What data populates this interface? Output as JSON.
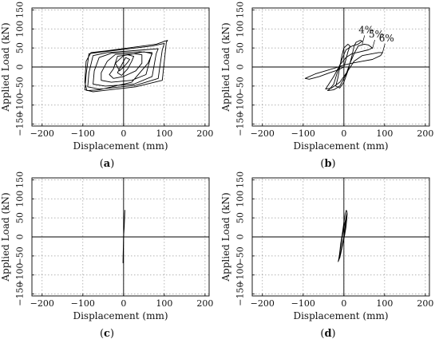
{
  "chart_data": [
    {
      "type": "line",
      "panel_label": "a",
      "xlabel": "Displacement (mm)",
      "ylabel": "Applied Load (kN)",
      "xlim": [
        -225,
        210
      ],
      "ylim": [
        -155,
        155
      ],
      "xticks": [
        -200,
        -100,
        0,
        100,
        200
      ],
      "xtick_labels": [
        "−200",
        "−100",
        "0",
        "100",
        "200"
      ],
      "yticks": [
        -150,
        -100,
        -50,
        0,
        50,
        100,
        150
      ],
      "ytick_labels": [
        "−150",
        "−100",
        "−50",
        "0",
        "50",
        "100",
        "150"
      ],
      "grid": true,
      "annotations": [],
      "series": [
        {
          "points": [
            [
              0,
              0
            ],
            [
              10,
              12
            ],
            [
              15,
              20
            ],
            [
              5,
              25
            ],
            [
              -10,
              -5
            ],
            [
              -15,
              -15
            ],
            [
              -5,
              -22
            ],
            [
              10,
              -5
            ],
            [
              20,
              15
            ],
            [
              25,
              28
            ],
            [
              10,
              32
            ],
            [
              -15,
              28
            ],
            [
              -25,
              -5
            ],
            [
              -35,
              -20
            ],
            [
              -25,
              -30
            ],
            [
              0,
              -25
            ],
            [
              30,
              -10
            ],
            [
              45,
              10
            ],
            [
              45,
              32
            ],
            [
              25,
              35
            ],
            [
              -20,
              33
            ],
            [
              -40,
              15
            ],
            [
              -55,
              -15
            ],
            [
              -55,
              -35
            ],
            [
              -30,
              -40
            ],
            [
              20,
              -35
            ],
            [
              55,
              -20
            ],
            [
              65,
              20
            ],
            [
              70,
              38
            ],
            [
              40,
              40
            ],
            [
              -30,
              36
            ],
            [
              -60,
              25
            ],
            [
              -72,
              -10
            ],
            [
              -75,
              -45
            ],
            [
              -45,
              -50
            ],
            [
              25,
              -45
            ],
            [
              70,
              -25
            ],
            [
              80,
              35
            ],
            [
              85,
              48
            ],
            [
              50,
              45
            ],
            [
              -40,
              38
            ],
            [
              -75,
              30
            ],
            [
              -85,
              -15
            ],
            [
              -88,
              -52
            ],
            [
              -60,
              -58
            ],
            [
              30,
              -48
            ],
            [
              85,
              -30
            ],
            [
              95,
              45
            ],
            [
              100,
              62
            ],
            [
              70,
              55
            ],
            [
              -50,
              40
            ],
            [
              -85,
              35
            ],
            [
              -92,
              -20
            ],
            [
              -95,
              -60
            ],
            [
              -75,
              -65
            ],
            [
              30,
              -52
            ],
            [
              95,
              -35
            ],
            [
              105,
              65
            ],
            [
              108,
              70
            ],
            [
              80,
              60
            ],
            [
              -45,
              42
            ],
            [
              -80,
              38
            ],
            [
              -92,
              15
            ],
            [
              -95,
              -40
            ],
            [
              -90,
              -62
            ],
            [
              -60,
              -60
            ],
            [
              20,
              -40
            ],
            [
              40,
              -15
            ],
            [
              60,
              10
            ],
            [
              70,
              35
            ],
            [
              50,
              40
            ],
            [
              0,
              30
            ],
            [
              -20,
              10
            ],
            [
              -10,
              -10
            ],
            [
              0,
              0
            ]
          ]
        }
      ]
    },
    {
      "type": "line",
      "panel_label": "b",
      "xlabel": "Displacement (mm)",
      "ylabel": "Applied Load (kN)",
      "xlim": [
        -225,
        210
      ],
      "ylim": [
        -155,
        155
      ],
      "xticks": [
        -200,
        -100,
        0,
        100,
        200
      ],
      "xtick_labels": [
        "−200",
        "−100",
        "0",
        "100",
        "200"
      ],
      "yticks": [
        -150,
        -100,
        -50,
        0,
        50,
        100,
        150
      ],
      "ytick_labels": [
        "−150",
        "−100",
        "−50",
        "0",
        "50",
        "100",
        "150"
      ],
      "grid": true,
      "annotations": [
        {
          "text": "4%",
          "at": [
            45,
            60
          ]
        },
        {
          "text": "5%",
          "at": [
            70,
            48
          ]
        },
        {
          "text": "6%",
          "at": [
            95,
            38
          ]
        }
      ],
      "series": [
        {
          "points": [
            [
              0,
              0
            ],
            [
              5,
              20
            ],
            [
              10,
              40
            ],
            [
              15,
              55
            ],
            [
              10,
              60
            ],
            [
              0,
              50
            ],
            [
              -5,
              30
            ],
            [
              -10,
              0
            ],
            [
              -15,
              -30
            ],
            [
              -20,
              -50
            ],
            [
              -10,
              -55
            ],
            [
              0,
              -40
            ],
            [
              10,
              -10
            ],
            [
              20,
              30
            ],
            [
              25,
              55
            ],
            [
              30,
              65
            ],
            [
              40,
              70
            ],
            [
              45,
              68
            ],
            [
              35,
              60
            ],
            [
              20,
              55
            ],
            [
              5,
              45
            ],
            [
              -5,
              20
            ],
            [
              -15,
              -10
            ],
            [
              -25,
              -45
            ],
            [
              -35,
              -58
            ],
            [
              -40,
              -62
            ],
            [
              -25,
              -60
            ],
            [
              -10,
              -50
            ],
            [
              5,
              -20
            ],
            [
              15,
              10
            ],
            [
              25,
              35
            ],
            [
              35,
              55
            ],
            [
              50,
              60
            ],
            [
              60,
              58
            ],
            [
              70,
              50
            ],
            [
              60,
              45
            ],
            [
              40,
              40
            ],
            [
              20,
              35
            ],
            [
              5,
              25
            ],
            [
              -10,
              5
            ],
            [
              -25,
              -25
            ],
            [
              -40,
              -50
            ],
            [
              -45,
              -58
            ],
            [
              -30,
              -55
            ],
            [
              -10,
              -40
            ],
            [
              10,
              -10
            ],
            [
              25,
              15
            ],
            [
              45,
              30
            ],
            [
              70,
              35
            ],
            [
              85,
              38
            ],
            [
              95,
              38
            ],
            [
              90,
              30
            ],
            [
              70,
              20
            ],
            [
              45,
              15
            ],
            [
              20,
              10
            ],
            [
              0,
              5
            ],
            [
              -20,
              -2
            ],
            [
              -45,
              -10
            ],
            [
              -70,
              -18
            ],
            [
              -95,
              -30
            ],
            [
              -85,
              -32
            ],
            [
              -60,
              -25
            ],
            [
              -35,
              -15
            ],
            [
              -15,
              -8
            ],
            [
              0,
              0
            ]
          ]
        }
      ]
    },
    {
      "type": "line",
      "panel_label": "c",
      "xlabel": "Displacement (mm)",
      "ylabel": "Applied Load (kN)",
      "xlim": [
        -225,
        210
      ],
      "ylim": [
        -155,
        155
      ],
      "xticks": [
        -200,
        -100,
        0,
        100,
        200
      ],
      "xtick_labels": [
        "−200",
        "−100",
        "0",
        "100",
        "200"
      ],
      "yticks": [
        -150,
        -100,
        -50,
        0,
        50,
        100,
        150
      ],
      "ytick_labels": [
        "−150",
        "−100",
        "−50",
        "0",
        "50",
        "100",
        "150"
      ],
      "grid": true,
      "annotations": [],
      "series": [
        {
          "points": [
            [
              0,
              0
            ],
            [
              1,
              20
            ],
            [
              2,
              45
            ],
            [
              3,
              70
            ],
            [
              2.5,
              50
            ],
            [
              1.5,
              25
            ],
            [
              0,
              0
            ],
            [
              -0.5,
              -25
            ],
            [
              -1,
              -50
            ],
            [
              -1.5,
              -68
            ],
            [
              -1,
              -45
            ],
            [
              -0.5,
              -20
            ],
            [
              0,
              0
            ]
          ]
        }
      ]
    },
    {
      "type": "line",
      "panel_label": "d",
      "xlabel": "Displacement (mm)",
      "ylabel": "Applied Load (kN)",
      "xlim": [
        -225,
        210
      ],
      "ylim": [
        -155,
        155
      ],
      "xticks": [
        -200,
        -100,
        0,
        100,
        200
      ],
      "xtick_labels": [
        "−200",
        "−100",
        "0",
        "100",
        "200"
      ],
      "yticks": [
        -150,
        -100,
        -50,
        0,
        50,
        100,
        150
      ],
      "ytick_labels": [
        "−150",
        "−100",
        "−50",
        "0",
        "50",
        "100",
        "150"
      ],
      "grid": true,
      "annotations": [],
      "series": [
        {
          "points": [
            [
              0,
              0
            ],
            [
              2,
              20
            ],
            [
              4,
              40
            ],
            [
              6,
              55
            ],
            [
              8,
              65
            ],
            [
              6,
              70
            ],
            [
              3,
              60
            ],
            [
              1,
              45
            ],
            [
              -1,
              30
            ],
            [
              -3,
              15
            ],
            [
              -5,
              0
            ],
            [
              -8,
              -20
            ],
            [
              -10,
              -40
            ],
            [
              -12,
              -55
            ],
            [
              -14,
              -65
            ],
            [
              -12,
              -60
            ],
            [
              -9,
              -45
            ],
            [
              -6,
              -30
            ],
            [
              -3,
              -15
            ],
            [
              0,
              0
            ],
            [
              3,
              15
            ],
            [
              5,
              30
            ],
            [
              7,
              48
            ],
            [
              8,
              62
            ],
            [
              6,
              55
            ],
            [
              3,
              40
            ],
            [
              0,
              25
            ],
            [
              -3,
              10
            ],
            [
              -6,
              -10
            ],
            [
              -9,
              -30
            ],
            [
              -11,
              -48
            ],
            [
              -13,
              -60
            ],
            [
              -10,
              -55
            ],
            [
              -7,
              -40
            ],
            [
              -4,
              -25
            ],
            [
              -1,
              -10
            ],
            [
              2,
              5
            ],
            [
              5,
              25
            ],
            [
              7,
              45
            ],
            [
              8,
              60
            ],
            [
              5,
              50
            ],
            [
              2,
              35
            ],
            [
              -1,
              20
            ],
            [
              -4,
              0
            ],
            [
              -7,
              -20
            ],
            [
              -10,
              -40
            ],
            [
              -12,
              -58
            ],
            [
              -9,
              -50
            ],
            [
              -5,
              -30
            ],
            [
              -2,
              -12
            ],
            [
              0,
              0
            ]
          ]
        }
      ]
    }
  ],
  "captions": {
    "a": "a",
    "b": "b",
    "c": "c",
    "d": "d"
  }
}
